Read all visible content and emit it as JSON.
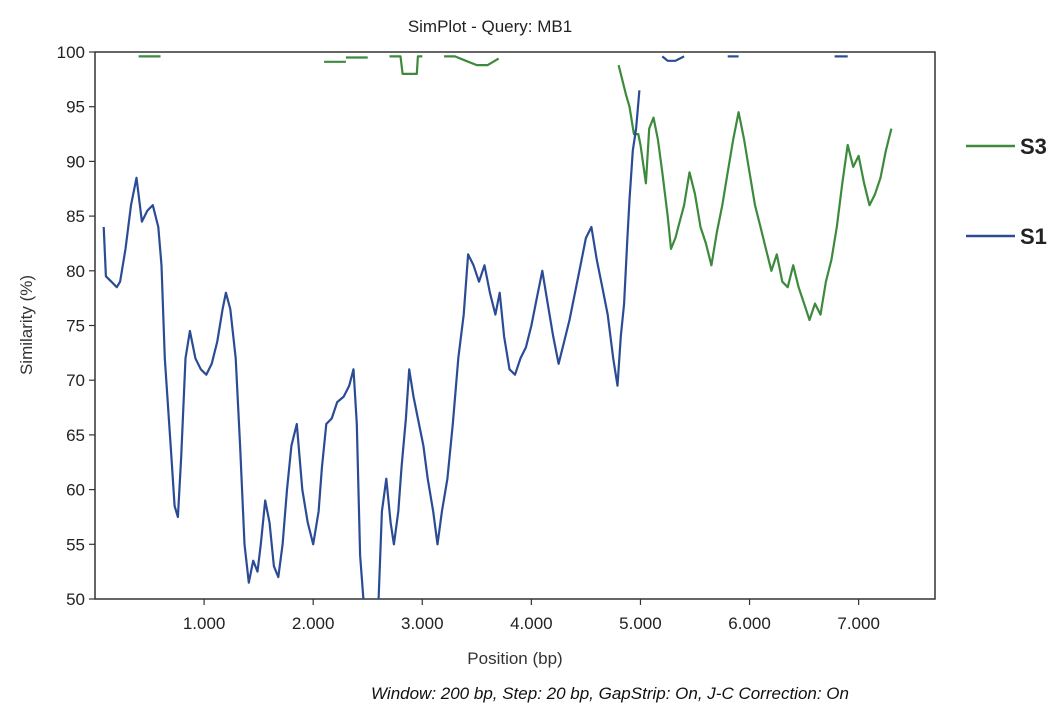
{
  "chart_data": {
    "type": "line",
    "title": "SimPlot - Query: MB1",
    "xlabel": "Position (bp)",
    "ylabel": "Similarity (%)",
    "xlim": [
      0,
      7700
    ],
    "ylim": [
      50,
      100
    ],
    "x_ticks": [
      {
        "value": 1000,
        "label": "1.000"
      },
      {
        "value": 2000,
        "label": "2.000"
      },
      {
        "value": 3000,
        "label": "3.000"
      },
      {
        "value": 4000,
        "label": "4.000"
      },
      {
        "value": 5000,
        "label": "5.000"
      },
      {
        "value": 6000,
        "label": "6.000"
      },
      {
        "value": 7000,
        "label": "7.000"
      }
    ],
    "y_ticks": [
      50,
      55,
      60,
      65,
      70,
      75,
      80,
      85,
      90,
      95,
      100
    ],
    "grid": false,
    "legend_position": "right",
    "footnote": "Window: 200 bp, Step: 20 bp, GapStrip: On, J-C Correction: On",
    "series": [
      {
        "name": "S3",
        "color": "#3d8a3d",
        "segments": [
          [
            [
              400,
              99.6
            ],
            [
              480,
              99.6
            ],
            [
              600,
              99.6
            ]
          ],
          [
            [
              2100,
              99.1
            ],
            [
              2300,
              99.1
            ]
          ],
          [
            [
              2300,
              99.5
            ],
            [
              2500,
              99.5
            ]
          ],
          [
            [
              2700,
              99.6
            ],
            [
              2800,
              99.6
            ],
            [
              2820,
              98.0
            ],
            [
              2950,
              98.0
            ],
            [
              2960,
              99.6
            ],
            [
              3000,
              99.6
            ]
          ],
          [
            [
              3200,
              99.6
            ],
            [
              3300,
              99.6
            ],
            [
              3400,
              99.2
            ],
            [
              3500,
              98.8
            ],
            [
              3600,
              98.8
            ],
            [
              3700,
              99.4
            ]
          ],
          [
            [
              4800,
              98.8
            ],
            [
              4870,
              96.0
            ],
            [
              4900,
              95.0
            ],
            [
              4940,
              92.5
            ],
            [
              4980,
              92.5
            ],
            [
              5000,
              91.5
            ],
            [
              5050,
              88.0
            ],
            [
              5080,
              93.0
            ],
            [
              5120,
              94.0
            ],
            [
              5160,
              92.0
            ],
            [
              5200,
              89.0
            ],
            [
              5250,
              85.0
            ],
            [
              5280,
              82.0
            ],
            [
              5320,
              83.0
            ],
            [
              5360,
              84.5
            ],
            [
              5400,
              86.0
            ],
            [
              5450,
              89.0
            ],
            [
              5500,
              87.0
            ],
            [
              5550,
              84.0
            ],
            [
              5600,
              82.5
            ],
            [
              5650,
              80.5
            ],
            [
              5700,
              83.5
            ],
            [
              5750,
              86.0
            ],
            [
              5800,
              89.0
            ],
            [
              5850,
              92.0
            ],
            [
              5900,
              94.5
            ],
            [
              5950,
              92.0
            ],
            [
              6000,
              89.0
            ],
            [
              6050,
              86.0
            ],
            [
              6100,
              84.0
            ],
            [
              6150,
              82.0
            ],
            [
              6200,
              80.0
            ],
            [
              6250,
              81.5
            ],
            [
              6300,
              79.0
            ],
            [
              6350,
              78.5
            ],
            [
              6400,
              80.5
            ],
            [
              6450,
              78.5
            ],
            [
              6500,
              77.0
            ],
            [
              6550,
              75.5
            ],
            [
              6600,
              77.0
            ],
            [
              6650,
              76.0
            ],
            [
              6700,
              79.0
            ],
            [
              6750,
              81.0
            ],
            [
              6800,
              84.0
            ],
            [
              6850,
              88.0
            ],
            [
              6900,
              91.5
            ],
            [
              6950,
              89.5
            ],
            [
              7000,
              90.5
            ],
            [
              7050,
              88.0
            ],
            [
              7100,
              86.0
            ],
            [
              7150,
              87.0
            ],
            [
              7200,
              88.5
            ],
            [
              7250,
              91.0
            ],
            [
              7300,
              93.0
            ]
          ]
        ]
      },
      {
        "name": "S1",
        "color": "#2b4c95",
        "segments": [
          [
            [
              80,
              84.0
            ],
            [
              100,
              79.5
            ],
            [
              150,
              79.0
            ],
            [
              200,
              78.5
            ],
            [
              230,
              79.0
            ],
            [
              280,
              82.0
            ],
            [
              330,
              86.0
            ],
            [
              380,
              88.5
            ],
            [
              430,
              84.5
            ],
            [
              480,
              85.5
            ],
            [
              530,
              86.0
            ],
            [
              580,
              84.0
            ],
            [
              610,
              80.5
            ],
            [
              640,
              72.0
            ],
            [
              680,
              66.0
            ],
            [
              700,
              63.0
            ],
            [
              730,
              58.5
            ],
            [
              760,
              57.5
            ],
            [
              790,
              63.0
            ],
            [
              830,
              72.0
            ],
            [
              870,
              74.5
            ],
            [
              920,
              72.0
            ],
            [
              970,
              71.0
            ],
            [
              1020,
              70.5
            ],
            [
              1070,
              71.5
            ],
            [
              1120,
              73.5
            ],
            [
              1170,
              76.5
            ],
            [
              1200,
              78.0
            ],
            [
              1240,
              76.5
            ],
            [
              1290,
              72.0
            ],
            [
              1330,
              64.0
            ],
            [
              1370,
              55.0
            ],
            [
              1410,
              51.5
            ],
            [
              1450,
              53.5
            ],
            [
              1490,
              52.5
            ],
            [
              1520,
              55.0
            ],
            [
              1560,
              59.0
            ],
            [
              1600,
              57.0
            ],
            [
              1640,
              53.0
            ],
            [
              1680,
              52.0
            ],
            [
              1720,
              55.0
            ],
            [
              1760,
              60.0
            ],
            [
              1800,
              64.0
            ],
            [
              1850,
              66.0
            ],
            [
              1900,
              60.0
            ],
            [
              1950,
              57.0
            ],
            [
              2000,
              55.0
            ],
            [
              2050,
              58.0
            ],
            [
              2080,
              62.0
            ],
            [
              2120,
              66.0
            ],
            [
              2170,
              66.5
            ],
            [
              2220,
              68.0
            ],
            [
              2280,
              68.5
            ],
            [
              2330,
              69.5
            ],
            [
              2370,
              71.0
            ],
            [
              2400,
              66.0
            ],
            [
              2430,
              54.0
            ],
            [
              2460,
              50.0
            ]
          ],
          [
            [
              2600,
              50.0
            ],
            [
              2630,
              58.0
            ],
            [
              2670,
              61.0
            ],
            [
              2710,
              57.0
            ],
            [
              2740,
              55.0
            ],
            [
              2780,
              58.0
            ],
            [
              2810,
              62.0
            ],
            [
              2850,
              66.5
            ],
            [
              2880,
              71.0
            ],
            [
              2920,
              68.5
            ],
            [
              2970,
              66.0
            ],
            [
              3010,
              64.0
            ],
            [
              3050,
              61.0
            ],
            [
              3100,
              58.0
            ],
            [
              3140,
              55.0
            ],
            [
              3180,
              58.0
            ],
            [
              3230,
              61.0
            ],
            [
              3280,
              66.0
            ],
            [
              3330,
              72.0
            ],
            [
              3380,
              76.0
            ],
            [
              3420,
              81.5
            ],
            [
              3470,
              80.5
            ],
            [
              3520,
              79.0
            ],
            [
              3570,
              80.5
            ],
            [
              3620,
              78.0
            ],
            [
              3670,
              76.0
            ],
            [
              3710,
              78.0
            ],
            [
              3750,
              74.0
            ],
            [
              3800,
              71.0
            ],
            [
              3850,
              70.5
            ],
            [
              3900,
              72.0
            ],
            [
              3950,
              73.0
            ],
            [
              4000,
              75.0
            ],
            [
              4050,
              77.5
            ],
            [
              4100,
              80.0
            ],
            [
              4150,
              77.0
            ],
            [
              4200,
              74.0
            ],
            [
              4250,
              71.5
            ],
            [
              4300,
              73.5
            ],
            [
              4350,
              75.5
            ],
            [
              4400,
              78.0
            ],
            [
              4450,
              80.5
            ],
            [
              4500,
              83.0
            ],
            [
              4550,
              84.0
            ],
            [
              4600,
              81.0
            ],
            [
              4650,
              78.5
            ],
            [
              4700,
              76.0
            ],
            [
              4750,
              72.0
            ],
            [
              4790,
              69.5
            ],
            [
              4820,
              74.0
            ],
            [
              4850,
              77.0
            ],
            [
              4880,
              83.0
            ],
            [
              4900,
              86.5
            ],
            [
              4930,
              91.0
            ],
            [
              4960,
              93.0
            ],
            [
              4990,
              96.5
            ]
          ],
          [
            [
              5200,
              99.6
            ],
            [
              5250,
              99.2
            ],
            [
              5320,
              99.2
            ],
            [
              5400,
              99.6
            ]
          ],
          [
            [
              5800,
              99.6
            ],
            [
              5900,
              99.6
            ]
          ],
          [
            [
              6780,
              99.6
            ],
            [
              6900,
              99.6
            ]
          ]
        ]
      }
    ]
  }
}
